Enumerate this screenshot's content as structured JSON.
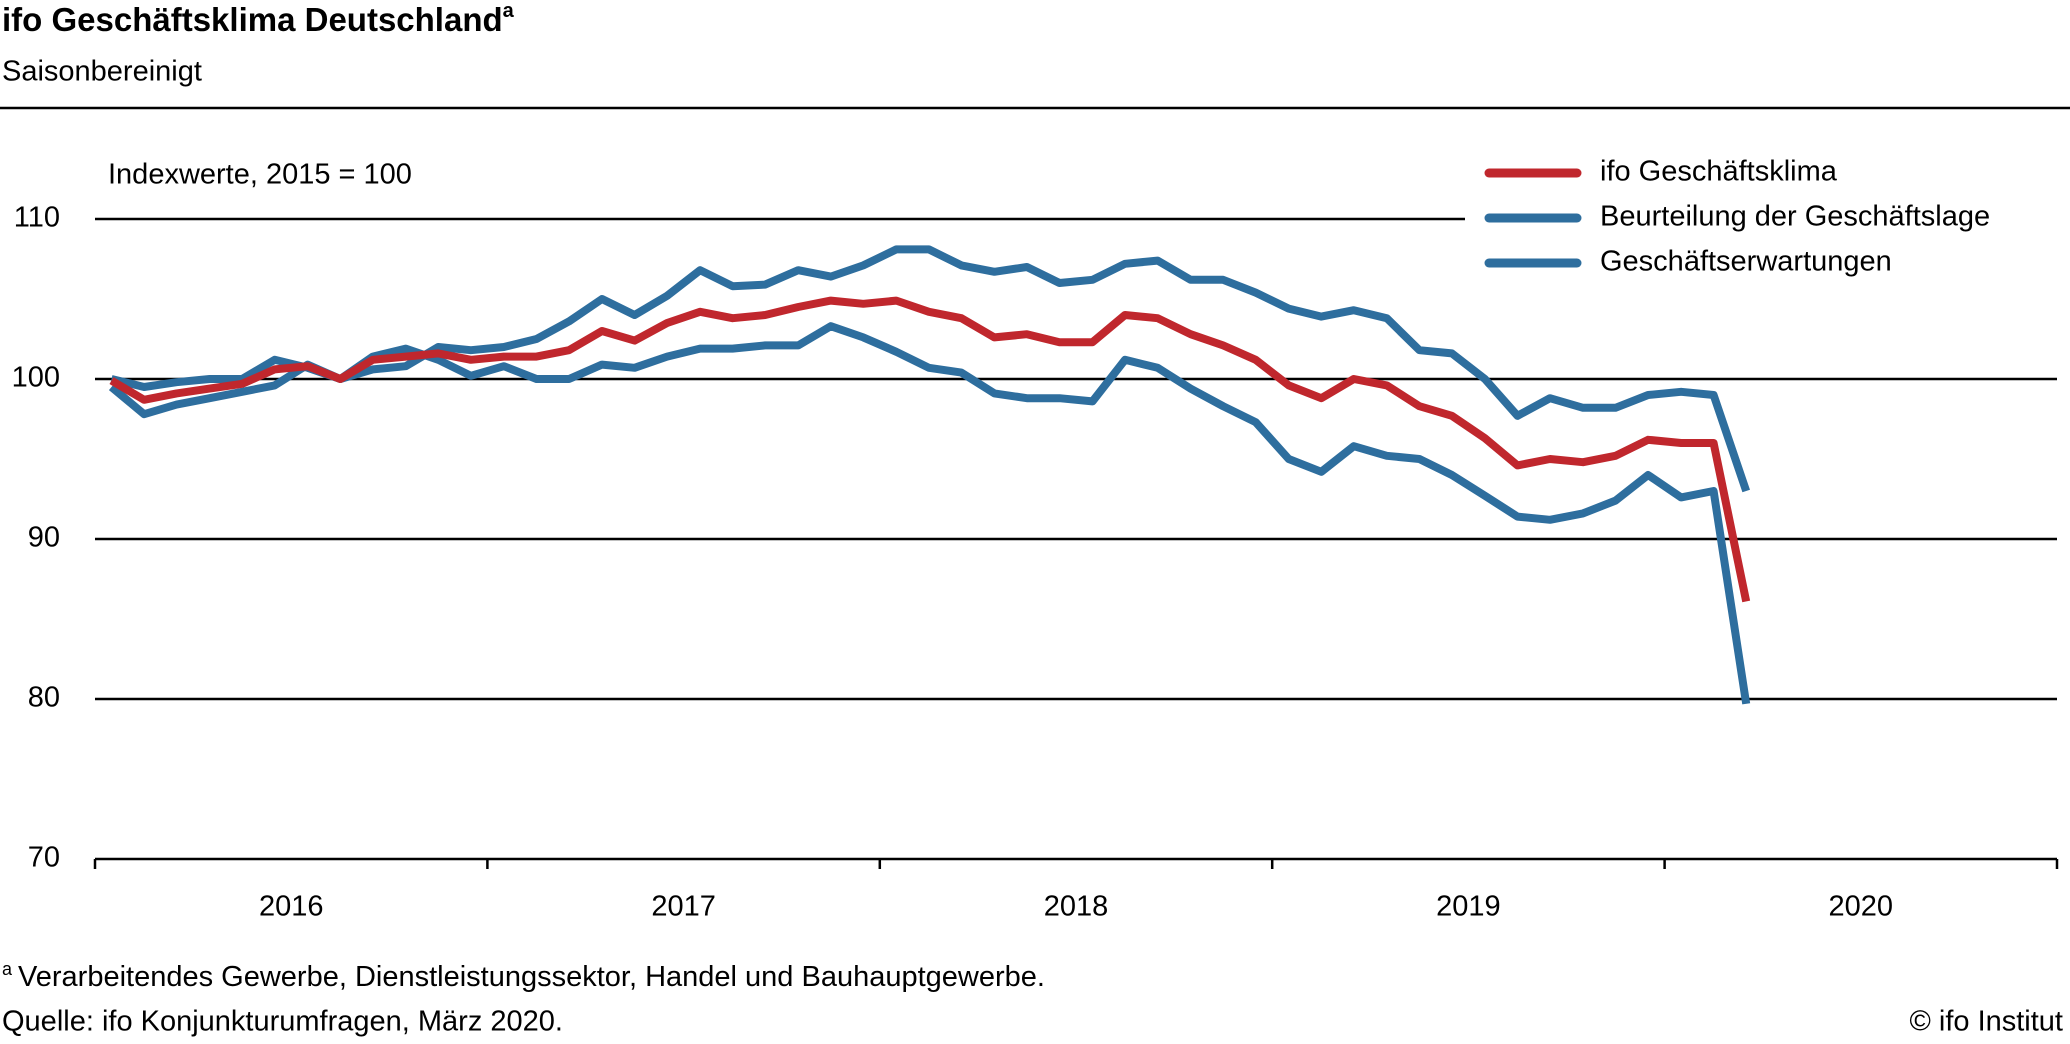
{
  "chart_data": {
    "type": "line",
    "title": "ifo Geschäftsklima Deutschland",
    "footnote_marker": "a",
    "subtitle": "Saisonbereinigt",
    "ylabel": "Indexwerte, 2015 = 100",
    "footnote": "Verarbeitendes Gewerbe, Dienstleistungssektor, Handel und Bauhauptgewerbe.",
    "source": "Quelle: ifo Konjunkturumfragen, März 2020.",
    "credit": "© ifo Institut",
    "x": [
      2016.042,
      2016.125,
      2016.208,
      2016.292,
      2016.375,
      2016.458,
      2016.542,
      2016.625,
      2016.708,
      2016.792,
      2016.875,
      2016.958,
      2017.042,
      2017.125,
      2017.208,
      2017.292,
      2017.375,
      2017.458,
      2017.542,
      2017.625,
      2017.708,
      2017.792,
      2017.875,
      2017.958,
      2018.042,
      2018.125,
      2018.208,
      2018.292,
      2018.375,
      2018.458,
      2018.542,
      2018.625,
      2018.708,
      2018.792,
      2018.875,
      2018.958,
      2019.042,
      2019.125,
      2019.208,
      2019.292,
      2019.375,
      2019.458,
      2019.542,
      2019.625,
      2019.708,
      2019.792,
      2019.875,
      2019.958,
      2020.042,
      2020.125,
      2020.208
    ],
    "series": [
      {
        "name": "ifo Geschäftsklima",
        "color": "#c0272d",
        "values": [
          99.9,
          98.7,
          99.1,
          99.4,
          99.7,
          100.6,
          100.8,
          100.0,
          101.2,
          101.4,
          101.6,
          101.2,
          101.4,
          101.4,
          101.8,
          103.0,
          102.4,
          103.5,
          104.2,
          103.8,
          104.0,
          104.5,
          104.9,
          104.7,
          104.9,
          104.2,
          103.8,
          102.6,
          102.8,
          102.3,
          102.3,
          104.0,
          103.8,
          102.8,
          102.1,
          101.2,
          99.6,
          98.8,
          100.0,
          99.6,
          98.3,
          97.7,
          96.3,
          94.6,
          95.0,
          94.8,
          95.2,
          96.2,
          96.0,
          96.0,
          86.1
        ]
      },
      {
        "name": "Beurteilung der Geschäftslage",
        "color": "#2e6e9e",
        "values": [
          100.0,
          99.5,
          99.8,
          100.0,
          100.0,
          101.2,
          100.7,
          100.0,
          100.6,
          100.8,
          102.0,
          101.8,
          102.0,
          102.5,
          103.6,
          105.0,
          104.0,
          105.2,
          106.8,
          105.8,
          105.9,
          106.8,
          106.4,
          107.1,
          108.1,
          108.1,
          107.1,
          106.7,
          107.0,
          106.0,
          106.2,
          107.2,
          107.4,
          106.2,
          106.2,
          105.4,
          104.4,
          103.9,
          104.3,
          103.8,
          101.8,
          101.6,
          100.0,
          97.7,
          98.8,
          98.2,
          98.2,
          99.0,
          99.2,
          99.0,
          93.0
        ]
      },
      {
        "name": "Geschäftserwartungen",
        "color": "#2e6e9e",
        "values": [
          99.5,
          97.8,
          98.4,
          98.8,
          99.2,
          99.6,
          100.9,
          100.0,
          101.4,
          101.9,
          101.2,
          100.2,
          100.8,
          100.0,
          100.0,
          100.9,
          100.7,
          101.4,
          101.9,
          101.9,
          102.1,
          102.1,
          103.3,
          102.6,
          101.7,
          100.7,
          100.4,
          99.1,
          98.8,
          98.8,
          98.6,
          101.2,
          100.7,
          99.4,
          98.3,
          97.3,
          95.0,
          94.2,
          95.8,
          95.2,
          95.0,
          94.0,
          92.7,
          91.4,
          91.2,
          91.6,
          92.4,
          94.0,
          92.6,
          93.0,
          79.7
        ]
      }
    ],
    "xlim": [
      2016,
      2021
    ],
    "xticks": [
      2016,
      2017,
      2018,
      2019,
      2020,
      2021
    ],
    "xtick_labels": [
      {
        "value": 2016.5,
        "label": "2016"
      },
      {
        "value": 2017.5,
        "label": "2017"
      },
      {
        "value": 2018.5,
        "label": "2018"
      },
      {
        "value": 2019.5,
        "label": "2019"
      },
      {
        "value": 2020.5,
        "label": "2020"
      }
    ],
    "ylim": [
      70,
      110
    ],
    "yticks": [
      70,
      80,
      90,
      100,
      110
    ],
    "grid": true,
    "legend": "top-right"
  }
}
